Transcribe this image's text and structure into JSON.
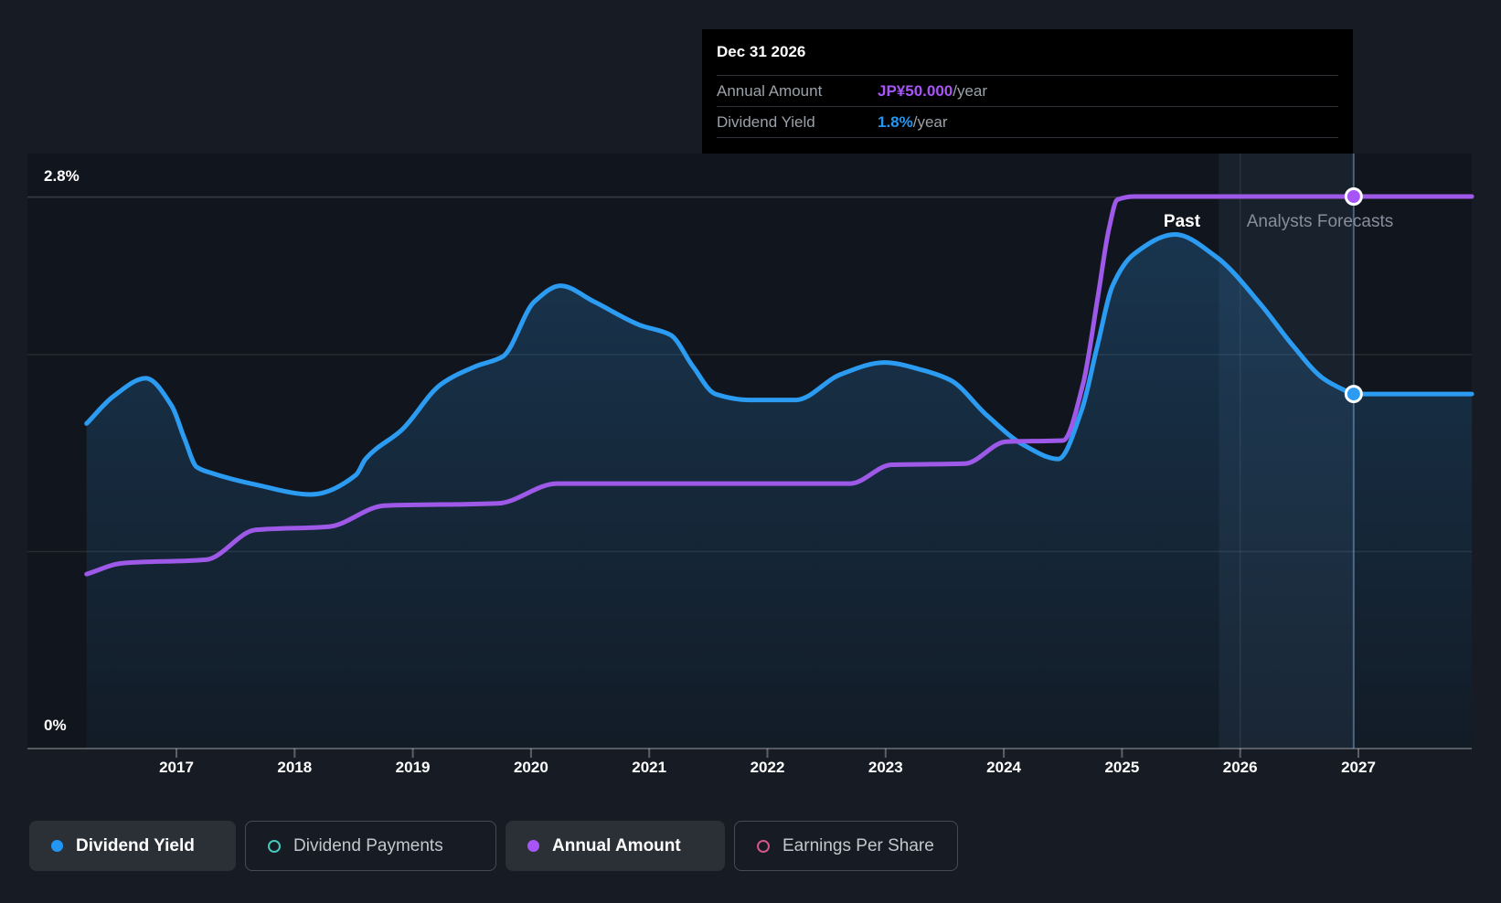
{
  "tooltip": {
    "title": "Dec 31 2026",
    "rows": [
      {
        "label": "Annual Amount",
        "value": "JP¥50.000",
        "suffix": "/year",
        "color": "#a855f7"
      },
      {
        "label": "Dividend Yield",
        "value": "1.8%",
        "suffix": "/year",
        "color": "#2196f3"
      }
    ]
  },
  "annotations": {
    "past_label": "Past",
    "forecast_label": "Analysts Forecasts"
  },
  "axis": {
    "y_top_label": "2.8%",
    "y_bottom_label": "0%",
    "years": [
      "2017",
      "2018",
      "2019",
      "2020",
      "2021",
      "2022",
      "2023",
      "2024",
      "2025",
      "2026",
      "2027"
    ]
  },
  "legend": {
    "items": [
      {
        "label": "Dividend Yield",
        "state": "active",
        "marker": "filled",
        "color": "#2196f3"
      },
      {
        "label": "Dividend Payments",
        "state": "inactive",
        "marker": "outline",
        "color": "#45c8bc"
      },
      {
        "label": "Annual Amount",
        "state": "active",
        "marker": "filled",
        "color": "#a855f7"
      },
      {
        "label": "Earnings Per Share",
        "state": "inactive",
        "marker": "outline",
        "color": "#d4548e"
      }
    ]
  },
  "chart_data": {
    "type": "line",
    "title": "Dividend history and forecast",
    "x_range": [
      2016.23,
      2027.96
    ],
    "ylim_percent": [
      0,
      2.8
    ],
    "gridlines_percent": [
      2.8,
      2.0,
      1.0
    ],
    "past_region_end": 2025.82,
    "hover_x": 2026.96,
    "legend_position": "bottom",
    "series": [
      {
        "name": "Dividend Yield",
        "unit": "%",
        "color": "#2b9cf2",
        "style": "area",
        "points": [
          [
            2016.24,
            1.65
          ],
          [
            2016.47,
            1.79
          ],
          [
            2016.74,
            1.88
          ],
          [
            2016.96,
            1.74
          ],
          [
            2017.07,
            1.57
          ],
          [
            2017.17,
            1.43
          ],
          [
            2017.29,
            1.4
          ],
          [
            2017.67,
            1.34
          ],
          [
            2018.14,
            1.29
          ],
          [
            2018.52,
            1.39
          ],
          [
            2018.6,
            1.47
          ],
          [
            2018.91,
            1.62
          ],
          [
            2019.24,
            1.85
          ],
          [
            2019.53,
            1.94
          ],
          [
            2019.76,
            1.99
          ],
          [
            2020.03,
            2.27
          ],
          [
            2020.25,
            2.35
          ],
          [
            2020.53,
            2.27
          ],
          [
            2020.92,
            2.15
          ],
          [
            2021.18,
            2.1
          ],
          [
            2021.37,
            1.94
          ],
          [
            2021.56,
            1.8
          ],
          [
            2021.85,
            1.77
          ],
          [
            2022.24,
            1.77
          ],
          [
            2022.62,
            1.9
          ],
          [
            2022.99,
            1.96
          ],
          [
            2023.32,
            1.92
          ],
          [
            2023.55,
            1.87
          ],
          [
            2023.86,
            1.69
          ],
          [
            2024.17,
            1.54
          ],
          [
            2024.46,
            1.47
          ],
          [
            2024.66,
            1.72
          ],
          [
            2024.79,
            2.04
          ],
          [
            2024.92,
            2.35
          ],
          [
            2025.1,
            2.51
          ],
          [
            2025.45,
            2.61
          ],
          [
            2025.79,
            2.5
          ],
          [
            2026.18,
            2.25
          ],
          [
            2026.44,
            2.05
          ],
          [
            2026.7,
            1.88
          ],
          [
            2026.88,
            1.82
          ],
          [
            2026.96,
            1.8
          ],
          [
            2027.96,
            1.8
          ]
        ]
      },
      {
        "name": "Annual Amount",
        "unit": "JP¥/year",
        "color": "#9e59e8",
        "style": "line",
        "points": [
          [
            2016.24,
            15.8
          ],
          [
            2016.55,
            16.8
          ],
          [
            2017.25,
            17.1
          ],
          [
            2017.67,
            19.8
          ],
          [
            2018.29,
            20.1
          ],
          [
            2018.76,
            22.0
          ],
          [
            2019.72,
            22.2
          ],
          [
            2020.22,
            24.0
          ],
          [
            2022.7,
            24.0
          ],
          [
            2023.05,
            25.7
          ],
          [
            2023.67,
            25.8
          ],
          [
            2024.02,
            27.8
          ],
          [
            2024.5,
            27.9
          ],
          [
            2024.67,
            33.0
          ],
          [
            2024.79,
            40.5
          ],
          [
            2024.89,
            47.1
          ],
          [
            2024.96,
            49.7
          ],
          [
            2025.1,
            50.0
          ],
          [
            2027.96,
            50.0
          ]
        ]
      }
    ],
    "markers": [
      {
        "series": "Annual Amount",
        "x": 2026.96,
        "value": 50.0,
        "color": "#a855f7"
      },
      {
        "series": "Dividend Yield",
        "x": 2026.96,
        "value": 1.8,
        "color": "#2b9cf2"
      }
    ],
    "annual_amount_axis_max": 50.0
  }
}
